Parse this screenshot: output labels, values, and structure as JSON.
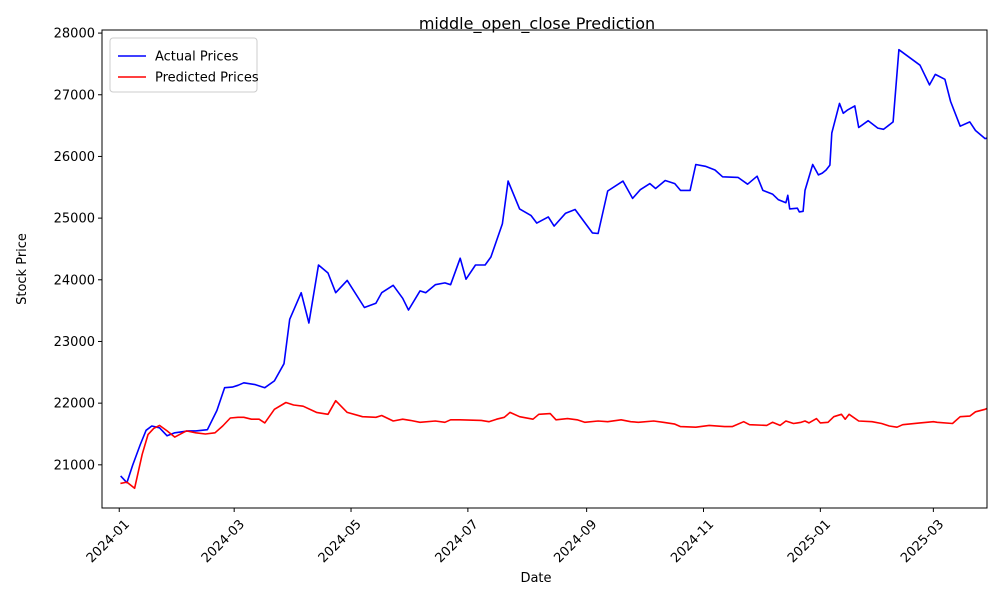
{
  "chart_data": {
    "type": "line",
    "title": "middle_open_close Prediction",
    "xlabel": "Date",
    "ylabel": "Stock Price",
    "x_range": [
      "2023-12-23",
      "2025-03-29"
    ],
    "ylim": [
      20300,
      28050
    ],
    "yticks": [
      21000,
      22000,
      23000,
      24000,
      25000,
      26000,
      27000,
      28000
    ],
    "xticks": [
      "2024-01",
      "2024-03",
      "2024-05",
      "2024-07",
      "2024-09",
      "2024-11",
      "2025-01",
      "2025-03"
    ],
    "grid": false,
    "legend_position": "upper-left",
    "series": [
      {
        "name": "Actual Prices",
        "color": "#0000ff",
        "points": [
          [
            "2024-01-02",
            20810
          ],
          [
            "2024-01-05",
            20710
          ],
          [
            "2024-01-08",
            20990
          ],
          [
            "2024-01-12",
            21330
          ],
          [
            "2024-01-15",
            21560
          ],
          [
            "2024-01-18",
            21630
          ],
          [
            "2024-01-22",
            21600
          ],
          [
            "2024-01-26",
            21470
          ],
          [
            "2024-01-30",
            21520
          ],
          [
            "2024-02-06",
            21550
          ],
          [
            "2024-02-10",
            21550
          ],
          [
            "2024-02-16",
            21570
          ],
          [
            "2024-02-21",
            21880
          ],
          [
            "2024-02-25",
            22250
          ],
          [
            "2024-02-29",
            22260
          ],
          [
            "2024-03-03",
            22290
          ],
          [
            "2024-03-06",
            22330
          ],
          [
            "2024-03-12",
            22300
          ],
          [
            "2024-03-17",
            22250
          ],
          [
            "2024-03-22",
            22360
          ],
          [
            "2024-03-27",
            22640
          ],
          [
            "2024-03-30",
            23360
          ],
          [
            "2024-04-05",
            23790
          ],
          [
            "2024-04-09",
            23300
          ],
          [
            "2024-04-14",
            24240
          ],
          [
            "2024-04-19",
            24110
          ],
          [
            "2024-04-23",
            23790
          ],
          [
            "2024-04-29",
            23990
          ],
          [
            "2024-05-08",
            23550
          ],
          [
            "2024-05-14",
            23620
          ],
          [
            "2024-05-17",
            23790
          ],
          [
            "2024-05-23",
            23910
          ],
          [
            "2024-05-28",
            23700
          ],
          [
            "2024-05-31",
            23510
          ],
          [
            "2024-06-06",
            23820
          ],
          [
            "2024-06-09",
            23790
          ],
          [
            "2024-06-14",
            23920
          ],
          [
            "2024-06-19",
            23950
          ],
          [
            "2024-06-22",
            23920
          ],
          [
            "2024-06-27",
            24350
          ],
          [
            "2024-06-30",
            24010
          ],
          [
            "2024-07-05",
            24240
          ],
          [
            "2024-07-10",
            24240
          ],
          [
            "2024-07-13",
            24370
          ],
          [
            "2024-07-19",
            24910
          ],
          [
            "2024-07-22",
            25600
          ],
          [
            "2024-07-28",
            25150
          ],
          [
            "2024-08-03",
            25040
          ],
          [
            "2024-08-06",
            24920
          ],
          [
            "2024-08-12",
            25020
          ],
          [
            "2024-08-15",
            24870
          ],
          [
            "2024-08-21",
            25080
          ],
          [
            "2024-08-26",
            25140
          ],
          [
            "2024-09-04",
            24760
          ],
          [
            "2024-09-07",
            24750
          ],
          [
            "2024-09-12",
            25440
          ],
          [
            "2024-09-20",
            25600
          ],
          [
            "2024-09-25",
            25320
          ],
          [
            "2024-09-29",
            25460
          ],
          [
            "2024-10-04",
            25560
          ],
          [
            "2024-10-07",
            25480
          ],
          [
            "2024-10-12",
            25610
          ],
          [
            "2024-10-17",
            25560
          ],
          [
            "2024-10-20",
            25450
          ],
          [
            "2024-10-25",
            25450
          ],
          [
            "2024-10-28",
            25870
          ],
          [
            "2024-11-02",
            25840
          ],
          [
            "2024-11-07",
            25780
          ],
          [
            "2024-11-11",
            25670
          ],
          [
            "2024-11-19",
            25660
          ],
          [
            "2024-11-24",
            25550
          ],
          [
            "2024-11-29",
            25680
          ],
          [
            "2024-12-02",
            25450
          ],
          [
            "2024-12-07",
            25390
          ],
          [
            "2024-12-10",
            25300
          ],
          [
            "2024-12-14",
            25250
          ],
          [
            "2024-12-15",
            25370
          ],
          [
            "2024-12-16",
            25150
          ],
          [
            "2024-12-20",
            25160
          ],
          [
            "2024-12-21",
            25100
          ],
          [
            "2024-12-23",
            25110
          ],
          [
            "2024-12-24",
            25450
          ],
          [
            "2024-12-28",
            25870
          ],
          [
            "2024-12-31",
            25700
          ],
          [
            "2025-01-02",
            25730
          ],
          [
            "2025-01-04",
            25780
          ],
          [
            "2025-01-06",
            25860
          ],
          [
            "2025-01-07",
            26380
          ],
          [
            "2025-01-11",
            26860
          ],
          [
            "2025-01-13",
            26700
          ],
          [
            "2025-01-15",
            26750
          ],
          [
            "2025-01-19",
            26820
          ],
          [
            "2025-01-21",
            26470
          ],
          [
            "2025-01-26",
            26580
          ],
          [
            "2025-01-31",
            26460
          ],
          [
            "2025-02-03",
            26440
          ],
          [
            "2025-02-08",
            26560
          ],
          [
            "2025-02-11",
            27730
          ],
          [
            "2025-02-22",
            27480
          ],
          [
            "2025-02-27",
            27160
          ],
          [
            "2025-03-02",
            27330
          ],
          [
            "2025-03-07",
            27250
          ],
          [
            "2025-03-10",
            26890
          ],
          [
            "2025-03-15",
            26490
          ],
          [
            "2025-03-20",
            26560
          ],
          [
            "2025-03-23",
            26420
          ],
          [
            "2025-03-28",
            26290
          ],
          [
            "2025-04-01",
            26320
          ]
        ]
      },
      {
        "name": "Predicted Prices",
        "color": "#ff0000",
        "points": [
          [
            "2024-01-02",
            20700
          ],
          [
            "2024-01-05",
            20720
          ],
          [
            "2024-01-09",
            20620
          ],
          [
            "2024-01-13",
            21170
          ],
          [
            "2024-01-16",
            21490
          ],
          [
            "2024-01-19",
            21590
          ],
          [
            "2024-01-22",
            21640
          ],
          [
            "2024-01-26",
            21550
          ],
          [
            "2024-01-30",
            21450
          ],
          [
            "2024-02-05",
            21550
          ],
          [
            "2024-02-10",
            21520
          ],
          [
            "2024-02-15",
            21500
          ],
          [
            "2024-02-20",
            21520
          ],
          [
            "2024-02-24",
            21630
          ],
          [
            "2024-02-28",
            21760
          ],
          [
            "2024-03-03",
            21770
          ],
          [
            "2024-03-06",
            21770
          ],
          [
            "2024-03-10",
            21740
          ],
          [
            "2024-03-14",
            21740
          ],
          [
            "2024-03-17",
            21680
          ],
          [
            "2024-03-22",
            21900
          ],
          [
            "2024-03-28",
            22010
          ],
          [
            "2024-04-01",
            21970
          ],
          [
            "2024-04-06",
            21950
          ],
          [
            "2024-04-13",
            21850
          ],
          [
            "2024-04-19",
            21820
          ],
          [
            "2024-04-23",
            22040
          ],
          [
            "2024-04-29",
            21850
          ],
          [
            "2024-05-07",
            21780
          ],
          [
            "2024-05-14",
            21770
          ],
          [
            "2024-05-17",
            21800
          ],
          [
            "2024-05-23",
            21710
          ],
          [
            "2024-05-28",
            21740
          ],
          [
            "2024-06-01",
            21720
          ],
          [
            "2024-06-06",
            21690
          ],
          [
            "2024-06-14",
            21710
          ],
          [
            "2024-06-19",
            21690
          ],
          [
            "2024-06-22",
            21730
          ],
          [
            "2024-06-27",
            21730
          ],
          [
            "2024-07-08",
            21720
          ],
          [
            "2024-07-12",
            21700
          ],
          [
            "2024-07-16",
            21740
          ],
          [
            "2024-07-20",
            21770
          ],
          [
            "2024-07-23",
            21850
          ],
          [
            "2024-07-28",
            21780
          ],
          [
            "2024-08-04",
            21740
          ],
          [
            "2024-08-07",
            21820
          ],
          [
            "2024-08-13",
            21830
          ],
          [
            "2024-08-16",
            21730
          ],
          [
            "2024-08-22",
            21750
          ],
          [
            "2024-08-27",
            21730
          ],
          [
            "2024-08-31",
            21690
          ],
          [
            "2024-09-07",
            21710
          ],
          [
            "2024-09-12",
            21700
          ],
          [
            "2024-09-19",
            21730
          ],
          [
            "2024-09-24",
            21700
          ],
          [
            "2024-09-28",
            21690
          ],
          [
            "2024-10-06",
            21710
          ],
          [
            "2024-10-11",
            21690
          ],
          [
            "2024-10-17",
            21660
          ],
          [
            "2024-10-20",
            21620
          ],
          [
            "2024-10-28",
            21610
          ],
          [
            "2024-11-04",
            21640
          ],
          [
            "2024-11-12",
            21620
          ],
          [
            "2024-11-16",
            21620
          ],
          [
            "2024-11-22",
            21700
          ],
          [
            "2024-11-25",
            21650
          ],
          [
            "2024-12-04",
            21640
          ],
          [
            "2024-12-07",
            21690
          ],
          [
            "2024-12-11",
            21640
          ],
          [
            "2024-12-14",
            21710
          ],
          [
            "2024-12-18",
            21670
          ],
          [
            "2024-12-20",
            21680
          ],
          [
            "2024-12-22",
            21690
          ],
          [
            "2024-12-24",
            21710
          ],
          [
            "2024-12-26",
            21680
          ],
          [
            "2024-12-30",
            21750
          ],
          [
            "2025-01-01",
            21680
          ],
          [
            "2025-01-05",
            21690
          ],
          [
            "2025-01-08",
            21780
          ],
          [
            "2025-01-12",
            21820
          ],
          [
            "2025-01-14",
            21740
          ],
          [
            "2025-01-16",
            21820
          ],
          [
            "2025-01-21",
            21710
          ],
          [
            "2025-01-28",
            21700
          ],
          [
            "2025-02-02",
            21670
          ],
          [
            "2025-02-06",
            21630
          ],
          [
            "2025-02-10",
            21610
          ],
          [
            "2025-02-13",
            21650
          ],
          [
            "2025-02-22",
            21680
          ],
          [
            "2025-03-01",
            21700
          ],
          [
            "2025-03-03",
            21690
          ],
          [
            "2025-03-11",
            21670
          ],
          [
            "2025-03-15",
            21780
          ],
          [
            "2025-03-20",
            21790
          ],
          [
            "2025-03-23",
            21860
          ],
          [
            "2025-03-28",
            21900
          ],
          [
            "2025-04-01",
            21950
          ]
        ]
      }
    ]
  }
}
